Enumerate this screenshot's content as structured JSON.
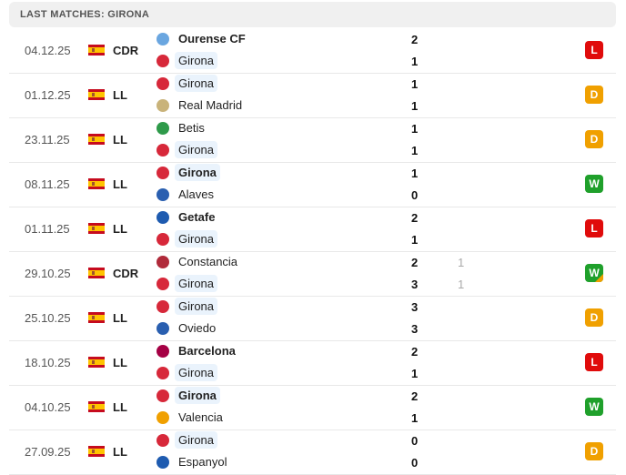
{
  "header": {
    "title": "LAST MATCHES: GIRONA"
  },
  "colors": {
    "win": "#1fa02b",
    "draw": "#f0a000",
    "loss": "#e00b0b",
    "girona_highlight": "#eaf3fc"
  },
  "matches": [
    {
      "date": "04.12.25",
      "flag": "spain-flag",
      "competition": "CDR",
      "teams": [
        {
          "name": "Ourense CF",
          "score": "2",
          "winner": true,
          "logo": "#6aa6e0"
        },
        {
          "name": "Girona",
          "score": "1",
          "highlight": true,
          "logo": "#d7283a"
        }
      ],
      "result": "L"
    },
    {
      "date": "01.12.25",
      "flag": "spain-flag",
      "competition": "LL",
      "teams": [
        {
          "name": "Girona",
          "score": "1",
          "highlight": true,
          "logo": "#d7283a"
        },
        {
          "name": "Real Madrid",
          "score": "1",
          "logo": "#c9b37a"
        }
      ],
      "result": "D"
    },
    {
      "date": "23.11.25",
      "flag": "spain-flag",
      "competition": "LL",
      "teams": [
        {
          "name": "Betis",
          "score": "1",
          "logo": "#2e9a4a"
        },
        {
          "name": "Girona",
          "score": "1",
          "highlight": true,
          "logo": "#d7283a"
        }
      ],
      "result": "D"
    },
    {
      "date": "08.11.25",
      "flag": "spain-flag",
      "competition": "LL",
      "teams": [
        {
          "name": "Girona",
          "score": "1",
          "winner": true,
          "highlight": true,
          "logo": "#d7283a"
        },
        {
          "name": "Alaves",
          "score": "0",
          "logo": "#2a5fb0"
        }
      ],
      "result": "W"
    },
    {
      "date": "01.11.25",
      "flag": "spain-flag",
      "competition": "LL",
      "teams": [
        {
          "name": "Getafe",
          "score": "2",
          "winner": true,
          "logo": "#1e5bb0"
        },
        {
          "name": "Girona",
          "score": "1",
          "highlight": true,
          "logo": "#d7283a"
        }
      ],
      "result": "L"
    },
    {
      "date": "29.10.25",
      "flag": "spain-flag",
      "competition": "CDR",
      "teams": [
        {
          "name": "Constancia",
          "score": "2",
          "sub": "1",
          "logo": "#b02a3a"
        },
        {
          "name": "Girona",
          "score": "3",
          "sub": "1",
          "highlight": true,
          "logo": "#d7283a"
        }
      ],
      "result": "W",
      "result_partial": true
    },
    {
      "date": "25.10.25",
      "flag": "spain-flag",
      "competition": "LL",
      "teams": [
        {
          "name": "Girona",
          "score": "3",
          "highlight": true,
          "logo": "#d7283a"
        },
        {
          "name": "Oviedo",
          "score": "3",
          "logo": "#2a5fb0"
        }
      ],
      "result": "D"
    },
    {
      "date": "18.10.25",
      "flag": "spain-flag",
      "competition": "LL",
      "teams": [
        {
          "name": "Barcelona",
          "score": "2",
          "winner": true,
          "logo": "#a50044"
        },
        {
          "name": "Girona",
          "score": "1",
          "highlight": true,
          "logo": "#d7283a"
        }
      ],
      "result": "L"
    },
    {
      "date": "04.10.25",
      "flag": "spain-flag",
      "competition": "LL",
      "teams": [
        {
          "name": "Girona",
          "score": "2",
          "winner": true,
          "highlight": true,
          "logo": "#d7283a"
        },
        {
          "name": "Valencia",
          "score": "1",
          "logo": "#f0a000"
        }
      ],
      "result": "W"
    },
    {
      "date": "27.09.25",
      "flag": "spain-flag",
      "competition": "LL",
      "teams": [
        {
          "name": "Girona",
          "score": "0",
          "highlight": true,
          "logo": "#d7283a"
        },
        {
          "name": "Espanyol",
          "score": "0",
          "logo": "#1e5bb0"
        }
      ],
      "result": "D"
    }
  ]
}
